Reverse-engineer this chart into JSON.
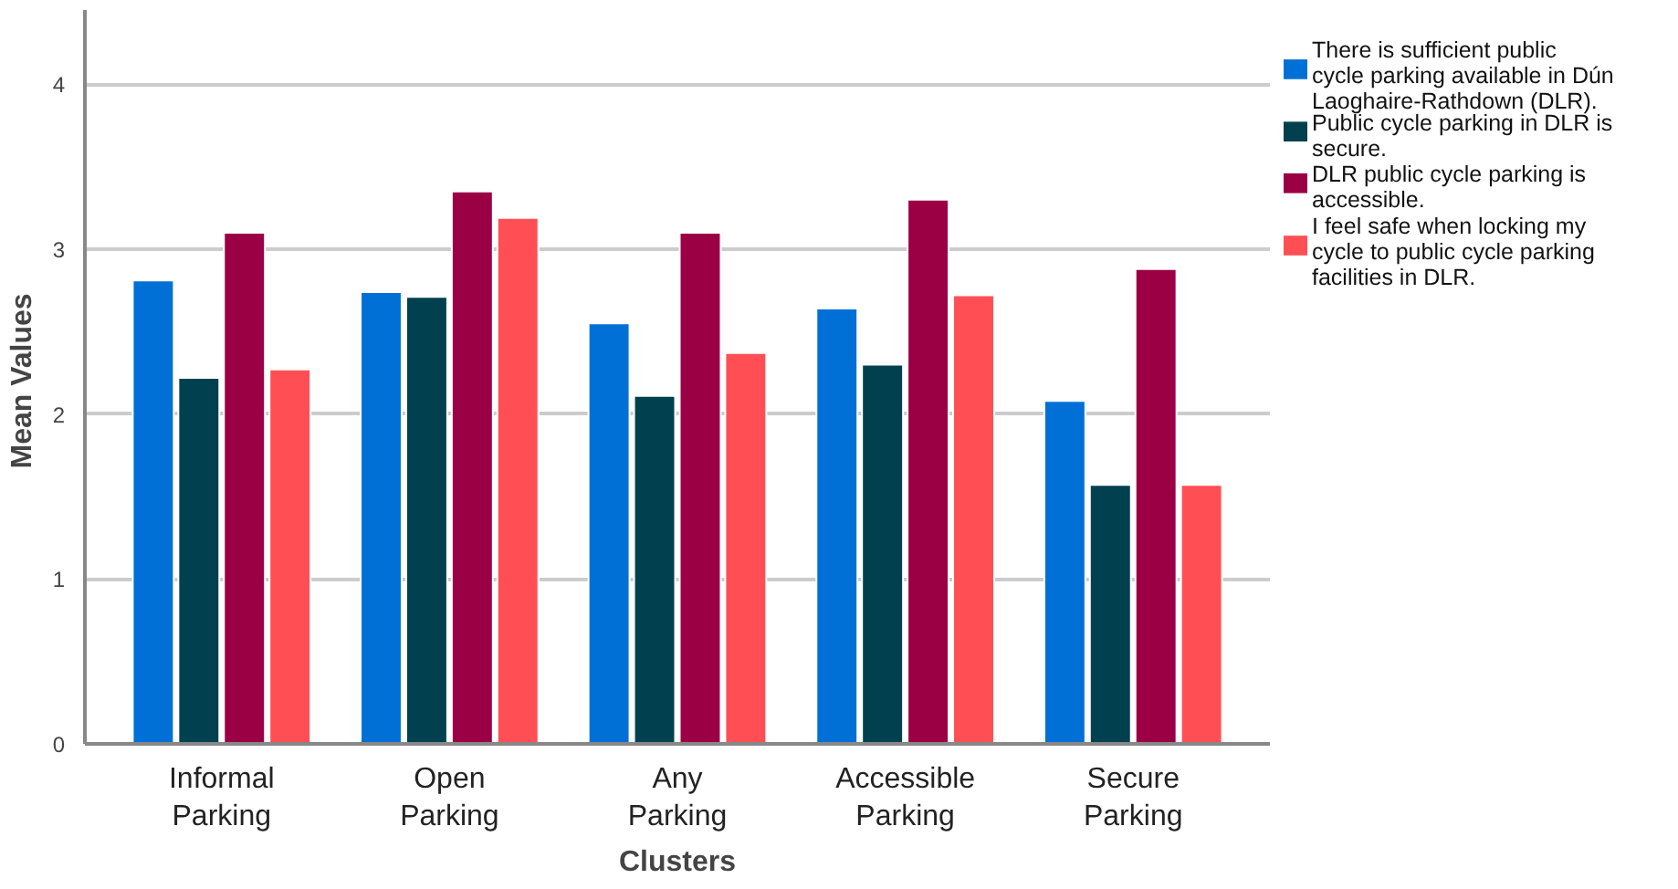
{
  "chart_data": {
    "type": "bar",
    "xlabel": "Clusters",
    "ylabel": "Mean  Values",
    "categories": [
      "Informal Parking",
      "Open Parking",
      "Any Parking",
      "Accessible Parking",
      "Secure Parking"
    ],
    "series": [
      {
        "name": "There is sufficient public cycle parking available in Dún Laoghaire-Rathdown (DLR).",
        "color": "#0070d6",
        "values": [
          2.81,
          2.74,
          2.55,
          2.64,
          2.08
        ]
      },
      {
        "name": "Public cycle parking in DLR is secure.",
        "color": "#00404f",
        "values": [
          2.22,
          2.71,
          2.11,
          2.3,
          1.57
        ]
      },
      {
        "name": "DLR public cycle parking is accessible.",
        "color": "#9b0045",
        "values": [
          3.1,
          3.35,
          3.1,
          3.3,
          2.88
        ]
      },
      {
        "name": "I feel safe when locking my cycle to public cycle parking facilities in DLR.",
        "color": "#ff4f55",
        "values": [
          2.27,
          3.19,
          2.37,
          2.72,
          1.57
        ]
      }
    ],
    "ylim": [
      0,
      4.45
    ],
    "yticks": [
      0,
      1,
      2,
      3,
      4
    ],
    "grid": "y",
    "legend": "right"
  }
}
